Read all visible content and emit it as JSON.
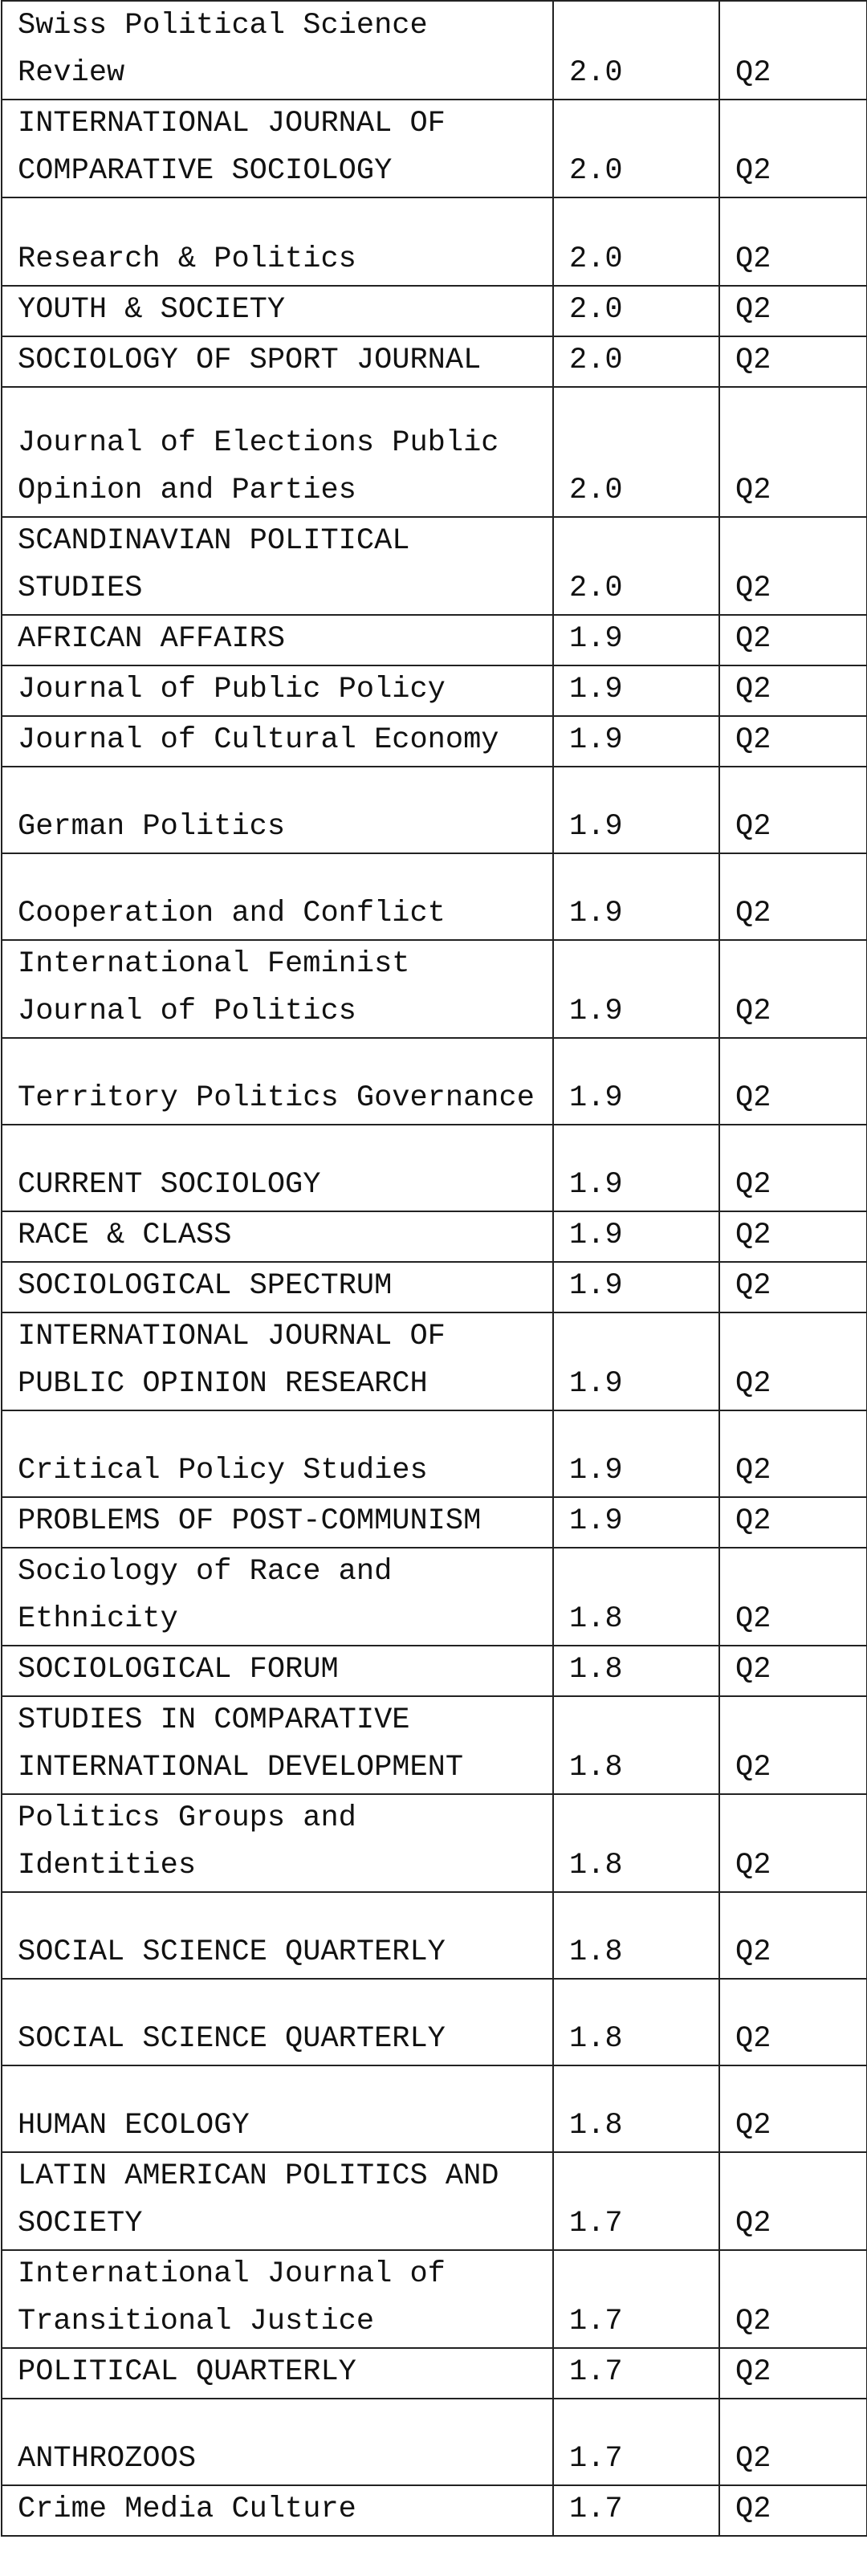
{
  "table": {
    "rows": [
      [
        "Swiss Political Science Review",
        "2.0",
        "Q2"
      ],
      [
        "INTERNATIONAL JOURNAL OF COMPARATIVE SOCIOLOGY",
        "2.0",
        "Q2"
      ],
      [
        "Research & Politics",
        "2.0",
        "Q2"
      ],
      [
        "YOUTH & SOCIETY",
        "2.0",
        "Q2"
      ],
      [
        "SOCIOLOGY OF SPORT JOURNAL",
        "2.0",
        "Q2"
      ],
      [
        "Journal of Elections Public Opinion and Parties",
        "2.0",
        "Q2"
      ],
      [
        "SCANDINAVIAN POLITICAL STUDIES",
        "2.0",
        "Q2"
      ],
      [
        "AFRICAN AFFAIRS",
        "1.9",
        "Q2"
      ],
      [
        "Journal of Public Policy",
        "1.9",
        "Q2"
      ],
      [
        "Journal of Cultural Economy",
        "1.9",
        "Q2"
      ],
      [
        "German Politics",
        "1.9",
        "Q2"
      ],
      [
        "Cooperation and Conflict",
        "1.9",
        "Q2"
      ],
      [
        "International Feminist Journal of Politics",
        "1.9",
        "Q2"
      ],
      [
        "Territory Politics Governance",
        "1.9",
        "Q2"
      ],
      [
        "CURRENT SOCIOLOGY",
        "1.9",
        "Q2"
      ],
      [
        "RACE & CLASS",
        "1.9",
        "Q2"
      ],
      [
        "SOCIOLOGICAL SPECTRUM",
        "1.9",
        "Q2"
      ],
      [
        "INTERNATIONAL JOURNAL OF PUBLIC OPINION RESEARCH",
        "1.9",
        "Q2"
      ],
      [
        "Critical Policy Studies",
        "1.9",
        "Q2"
      ],
      [
        "PROBLEMS OF POST-COMMUNISM",
        "1.9",
        "Q2"
      ],
      [
        "Sociology of Race and Ethnicity",
        "1.8",
        "Q2"
      ],
      [
        "SOCIOLOGICAL FORUM",
        "1.8",
        "Q2"
      ],
      [
        "STUDIES IN COMPARATIVE INTERNATIONAL DEVELOPMENT",
        "1.8",
        "Q2"
      ],
      [
        "Politics Groups and Identities",
        "1.8",
        "Q2"
      ],
      [
        "SOCIAL SCIENCE QUARTERLY",
        "1.8",
        "Q2"
      ],
      [
        "SOCIAL SCIENCE QUARTERLY",
        "1.8",
        "Q2"
      ],
      [
        "HUMAN ECOLOGY",
        "1.8",
        "Q2"
      ],
      [
        "LATIN AMERICAN POLITICS AND SOCIETY",
        "1.7",
        "Q2"
      ],
      [
        "International Journal of Transitional Justice",
        "1.7",
        "Q2"
      ],
      [
        "POLITICAL QUARTERLY",
        "1.7",
        "Q2"
      ],
      [
        "ANTHROZOOS",
        "1.7",
        "Q2"
      ],
      [
        "Crime Media Culture",
        "1.7",
        "Q2"
      ]
    ]
  }
}
